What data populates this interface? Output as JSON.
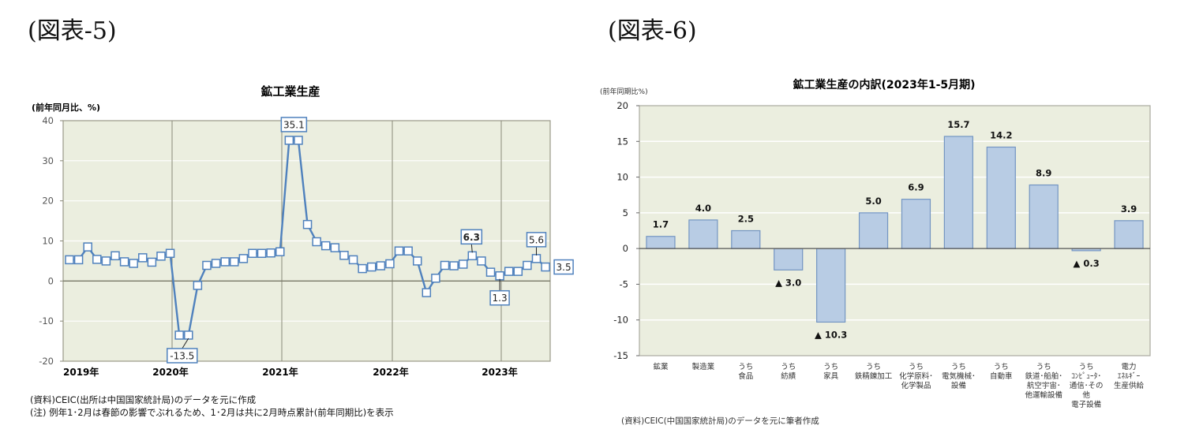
{
  "figures": [
    {
      "label": "(図表-5)"
    },
    {
      "label": "(図表-6)"
    }
  ],
  "notes": {
    "left_source": "(資料)CEIC(出所は中国国家統計局)のデータを元に作成",
    "left_note": "(注) 例年1･2月は春節の影響でぶれるため、1･2月は共に2月時点累計(前年同期比)を表示",
    "right_source": "(資料)CEIC(中国国家統計局)のデータを元に筆者作成"
  },
  "chart_data": [
    {
      "type": "line",
      "title": "鉱工業生産",
      "ylabel": "(前年同月比、%)",
      "xlabel": "",
      "ylim": [
        -20,
        40
      ],
      "yticks": [
        40,
        30,
        20,
        10,
        0,
        -10,
        -20
      ],
      "xtick_labels": [
        "2019年",
        "2020年",
        "2021年",
        "2022年",
        "2023年"
      ],
      "grid": true,
      "legend": null,
      "x": [
        "2019-01",
        "2019-02",
        "2019-03",
        "2019-04",
        "2019-05",
        "2019-06",
        "2019-07",
        "2019-08",
        "2019-09",
        "2019-10",
        "2019-11",
        "2019-12",
        "2020-01",
        "2020-02",
        "2020-03",
        "2020-04",
        "2020-05",
        "2020-06",
        "2020-07",
        "2020-08",
        "2020-09",
        "2020-10",
        "2020-11",
        "2020-12",
        "2021-01",
        "2021-02",
        "2021-03",
        "2021-04",
        "2021-05",
        "2021-06",
        "2021-07",
        "2021-08",
        "2021-09",
        "2021-10",
        "2021-11",
        "2021-12",
        "2022-01",
        "2022-02",
        "2022-03",
        "2022-04",
        "2022-05",
        "2022-06",
        "2022-07",
        "2022-08",
        "2022-09",
        "2022-10",
        "2022-11",
        "2022-12",
        "2023-01",
        "2023-02",
        "2023-03",
        "2023-04",
        "2023-05"
      ],
      "series": [
        {
          "name": "鉱工業生産",
          "color": "#4f81bd",
          "values": [
            5.3,
            5.3,
            8.5,
            5.4,
            5.0,
            6.3,
            4.8,
            4.4,
            5.8,
            4.7,
            6.2,
            6.9,
            -13.5,
            -13.5,
            -1.1,
            3.9,
            4.4,
            4.8,
            4.8,
            5.6,
            6.9,
            6.9,
            7.0,
            7.3,
            35.1,
            35.1,
            14.1,
            9.8,
            8.8,
            8.3,
            6.4,
            5.3,
            3.1,
            3.5,
            3.8,
            4.3,
            7.5,
            7.5,
            5.0,
            -2.9,
            0.7,
            3.9,
            3.8,
            4.2,
            6.3,
            5.0,
            2.2,
            1.3,
            2.4,
            2.4,
            3.9,
            5.6,
            3.5
          ]
        }
      ],
      "annotations": [
        {
          "x": "2020-02",
          "text": "-13.5"
        },
        {
          "x": "2021-01",
          "text": "35.1"
        },
        {
          "x": "2022-09",
          "text": "6.3"
        },
        {
          "x": "2022-12",
          "text": "1.3"
        },
        {
          "x": "2023-04",
          "text": "5.6"
        },
        {
          "x": "2023-05",
          "text": "3.5"
        }
      ]
    },
    {
      "type": "bar",
      "title": "鉱工業生産の内訳(2023年1-5月期)",
      "ylabel": "(前年同期比%)",
      "xlabel": "",
      "ylim": [
        -15,
        20
      ],
      "yticks": [
        20,
        15,
        10,
        5,
        0,
        -5,
        -10,
        -15
      ],
      "grid": true,
      "legend": null,
      "categories": [
        [
          "鉱業"
        ],
        [
          "製造業"
        ],
        [
          "うち",
          "食品"
        ],
        [
          "うち",
          "紡績"
        ],
        [
          "うち",
          "家具"
        ],
        [
          "うち",
          "鉄精錬加工"
        ],
        [
          "うち",
          "化学原料･",
          "化学製品"
        ],
        [
          "うち",
          "電気機械･",
          "設備"
        ],
        [
          "うち",
          "自動車"
        ],
        [
          "うち",
          "鉄道･船舶･",
          "航空宇宙･",
          "他運輸設備"
        ],
        [
          "うち",
          "ｺﾝﾋﾟｭｰﾀ･",
          "通信･その",
          "他",
          "電子設備"
        ],
        [
          "電力",
          "ｴﾈﾙｷﾞｰ",
          "生産供給"
        ]
      ],
      "values": [
        1.7,
        4.0,
        2.5,
        -3.0,
        -10.3,
        5.0,
        6.9,
        15.7,
        14.2,
        8.9,
        -0.3,
        3.9
      ],
      "value_labels": [
        "1.7",
        "4.0",
        "2.5",
        "▲ 3.0",
        "▲ 10.3",
        "5.0",
        "6.9",
        "15.7",
        "14.2",
        "8.9",
        "▲ 0.3",
        "3.9"
      ],
      "bar_color": "#b8cce4",
      "bar_border": "#7395c2"
    }
  ],
  "colors": {
    "plot_bg": "#ebeedf",
    "grid": "#ffffff",
    "axis": "#888877",
    "line": "#4f81bd",
    "marker_fill": "#ffffff"
  }
}
